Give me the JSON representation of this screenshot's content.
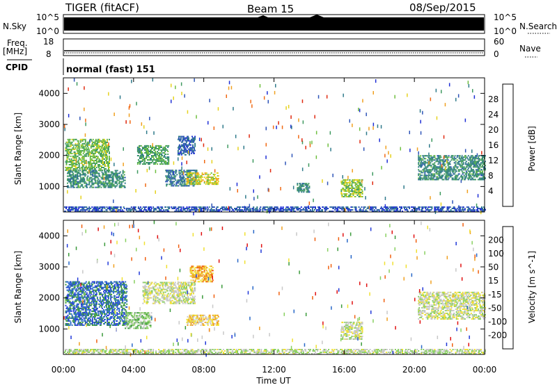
{
  "header": {
    "station": "TIGER (fitACF)",
    "beam": "Beam 15",
    "date": "08/Sep/2015"
  },
  "top_panels": {
    "nsky_label": "N.Sky",
    "nsky_ticks": [
      "10^5",
      "10^0"
    ],
    "nsearch_label": "N.Search",
    "nsearch_ticks": [
      "10^5",
      "10^0"
    ],
    "freq_label": "Freq.",
    "freq_unit": "[MHz]",
    "freq_ticks": [
      "18",
      "8"
    ],
    "nave_label": "Nave",
    "nave_ticks": [
      "60",
      "0"
    ],
    "cpid_label": "CPID",
    "cpid_text": "normal (fast) 151"
  },
  "colors": {
    "power_scale": [
      "#1f2fd6",
      "#2f55b8",
      "#2f7a8a",
      "#3f9a60",
      "#6fbf40",
      "#e6d21e",
      "#f0a020",
      "#f06a14",
      "#e02a10"
    ],
    "velocity_scale": [
      "#2038d8",
      "#2868c8",
      "#3a9a3a",
      "#88d060",
      "#c8c8c8",
      "#f0e030",
      "#f0a020",
      "#f06010",
      "#e01010"
    ]
  },
  "chart_data": [
    {
      "type": "heatmap",
      "name": "power",
      "ylabel": "Slant Range [km]",
      "yticks": [
        "4000",
        "3000",
        "2000",
        "1000"
      ],
      "ylim": [
        180,
        4500
      ],
      "xlim": [
        0,
        24
      ],
      "colorbar_label": "Power [dB]",
      "colorbar_ticks": [
        "28",
        "24",
        "20",
        "16",
        "12",
        "8",
        "4"
      ],
      "clim": [
        0,
        30
      ],
      "regions": [
        {
          "t": [
            0.1,
            2.6
          ],
          "r": [
            1500,
            2500
          ],
          "v": 14
        },
        {
          "t": [
            0.2,
            3.5
          ],
          "r": [
            950,
            1500
          ],
          "v": 10
        },
        {
          "t": [
            4.2,
            6.0
          ],
          "r": [
            1700,
            2300
          ],
          "v": 12
        },
        {
          "t": [
            5.8,
            7.6
          ],
          "r": [
            1000,
            1500
          ],
          "v": 8
        },
        {
          "t": [
            6.5,
            7.5
          ],
          "r": [
            2000,
            2600
          ],
          "v": 6
        },
        {
          "t": [
            7.0,
            8.8
          ],
          "r": [
            1050,
            1450
          ],
          "v": 18
        },
        {
          "t": [
            13.3,
            14.0
          ],
          "r": [
            800,
            1100
          ],
          "v": 10
        },
        {
          "t": [
            15.8,
            17.0
          ],
          "r": [
            650,
            1200
          ],
          "v": 16
        },
        {
          "t": [
            20.2,
            24.0
          ],
          "r": [
            1200,
            2000
          ],
          "v": 10
        },
        {
          "t": [
            0.0,
            24.0
          ],
          "r": [
            180,
            330
          ],
          "v": 5
        }
      ]
    },
    {
      "type": "heatmap",
      "name": "velocity",
      "ylabel": "Slant Range [km]",
      "yticks": [
        "4000",
        "3000",
        "2000",
        "1000"
      ],
      "ylim": [
        180,
        4500
      ],
      "xlim": [
        0,
        24
      ],
      "colorbar_label": "Velocity [m s^-1]",
      "colorbar_ticks": [
        "200",
        "100",
        "50",
        "15",
        "-15",
        "-50",
        "-100",
        "-200"
      ],
      "clim": [
        -250,
        250
      ],
      "regions": [
        {
          "t": [
            0.1,
            3.6
          ],
          "r": [
            1100,
            2500
          ],
          "v": 160
        },
        {
          "t": [
            3.5,
            5.0
          ],
          "r": [
            1000,
            1500
          ],
          "v": 60
        },
        {
          "t": [
            4.5,
            7.5
          ],
          "r": [
            1800,
            2500
          ],
          "v": 0
        },
        {
          "t": [
            7.0,
            8.8
          ],
          "r": [
            1100,
            1450
          ],
          "v": -60
        },
        {
          "t": [
            7.2,
            8.5
          ],
          "r": [
            2500,
            3000
          ],
          "v": -100
        },
        {
          "t": [
            15.8,
            17.0
          ],
          "r": [
            650,
            1200
          ],
          "v": 0
        },
        {
          "t": [
            20.2,
            24.0
          ],
          "r": [
            1300,
            2200
          ],
          "v": 0
        },
        {
          "t": [
            0.0,
            24.0
          ],
          "r": [
            180,
            330
          ],
          "v": 20
        }
      ]
    }
  ],
  "xaxis": {
    "ticks": [
      "00:00",
      "04:00",
      "08:00",
      "12:00",
      "16:00",
      "20:00",
      "00:00"
    ],
    "title": "Time UT"
  }
}
